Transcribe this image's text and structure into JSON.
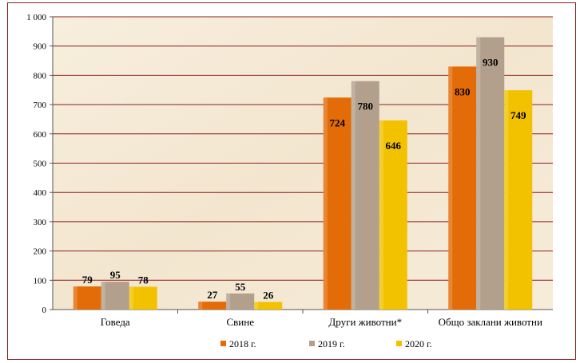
{
  "chart_data": {
    "type": "bar",
    "categories": [
      "Говеда",
      "Свине",
      "Други животни*",
      "Общо заклани животни"
    ],
    "series": [
      {
        "name": "2018 г.",
        "values": [
          79,
          27,
          724,
          830
        ],
        "color": "#e36c09"
      },
      {
        "name": "2019 г.",
        "values": [
          95,
          55,
          780,
          930
        ],
        "color": "#b3a08c"
      },
      {
        "name": "2020 г.",
        "values": [
          78,
          26,
          646,
          749
        ],
        "color": "#f2c200"
      }
    ],
    "y_ticks": [
      "0",
      "100",
      "200",
      "300",
      "400",
      "500",
      "600",
      "700",
      "800",
      "900",
      "1 000"
    ],
    "ylim": [
      0,
      1000
    ],
    "grid": true,
    "legend_position": "bottom",
    "gridline_color": "#8b1e1e",
    "plot_background": "#f5ead8"
  }
}
